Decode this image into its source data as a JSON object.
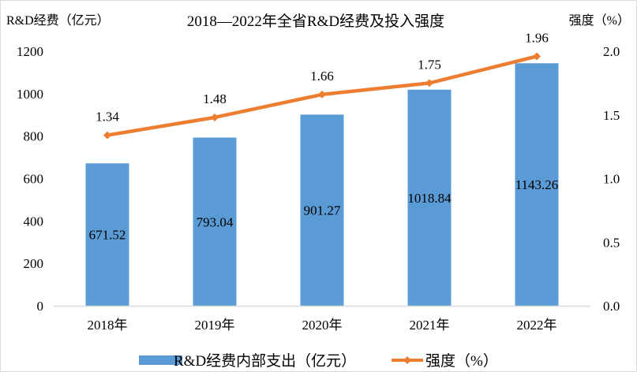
{
  "chart_data": {
    "type": "bar+line",
    "title": "2018—2022年全省R&D经费及投入强度",
    "ylabel_left": "R&D经费（亿元）",
    "ylabel_right": "强度（%）",
    "categories": [
      "2018年",
      "2019年",
      "2020年",
      "2021年",
      "2022年"
    ],
    "ylim_left": [
      0,
      1200
    ],
    "yticks_left": [
      "0",
      "200",
      "400",
      "600",
      "800",
      "1000",
      "1200"
    ],
    "ylim_right": [
      0,
      2.0
    ],
    "yticks_right": [
      "0.0",
      "0.5",
      "1.0",
      "1.5",
      "2.0"
    ],
    "grid": false,
    "legend_position": "bottom",
    "series": [
      {
        "name": "R&D经费内部支出（亿元）",
        "type": "bar",
        "axis": "left",
        "color": "#5B9BD5",
        "values": [
          671.52,
          793.04,
          901.27,
          1018.84,
          1143.26
        ],
        "labels": [
          "671.52",
          "793.04",
          "901.27",
          "1018.84",
          "1143.26"
        ]
      },
      {
        "name": "强度（%）",
        "type": "line",
        "axis": "right",
        "color": "#ED7D31",
        "values": [
          1.34,
          1.48,
          1.66,
          1.75,
          1.96
        ],
        "labels": [
          "1.34",
          "1.48",
          "1.66",
          "1.75",
          "1.96"
        ]
      }
    ]
  }
}
